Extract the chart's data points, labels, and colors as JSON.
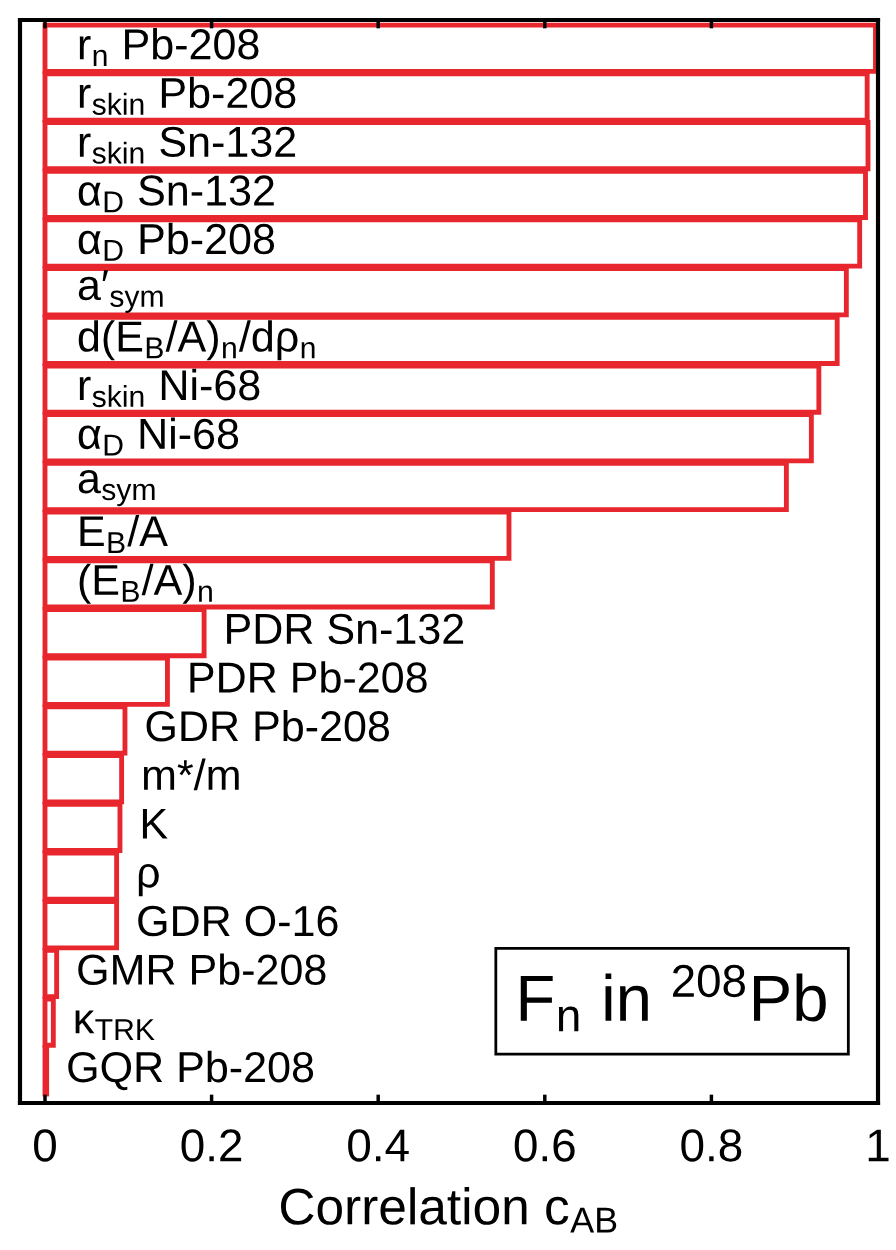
{
  "chart_data": {
    "type": "bar",
    "orientation": "horizontal",
    "categories": [
      "r$_{n}$ Pb-208",
      "r$_{skin}$ Pb-208",
      "r$_{skin}$ Sn-132",
      "α$_{D}$ Sn-132",
      "α$_{D}$ Pb-208",
      "a′$_{sym}$",
      "d(E$_{B}$/A)$_{n}$/dρ$_{n}$",
      "r$_{skin}$ Ni-68",
      "α$_{D}$ Ni-68",
      "a$_{sym}$",
      "E$_{B}$/A",
      "(E$_{B}$/A)$_{n}$",
      "PDR Sn-132",
      "PDR Pb-208",
      "GDR Pb-208",
      "m*/m",
      "K",
      "ρ",
      "GDR O-16",
      "GMR Pb-208",
      "κ$_{TRK}$",
      "GQR Pb-208"
    ],
    "values": [
      0.997,
      0.987,
      0.988,
      0.985,
      0.978,
      0.962,
      0.951,
      0.929,
      0.92,
      0.89,
      0.557,
      0.537,
      0.191,
      0.147,
      0.096,
      0.092,
      0.09,
      0.086,
      0.086,
      0.014,
      0.01,
      0.002
    ],
    "color": "#e8262d",
    "xlim": [
      -0.03,
      1
    ],
    "xticks": [
      0,
      0.2,
      0.4,
      0.6,
      0.8,
      1
    ],
    "xlabel": "Correlation c$_{AB}$",
    "tick_labels": "x",
    "annotations": [
      "F$_{n}$ in $^{208}$Pb"
    ]
  }
}
